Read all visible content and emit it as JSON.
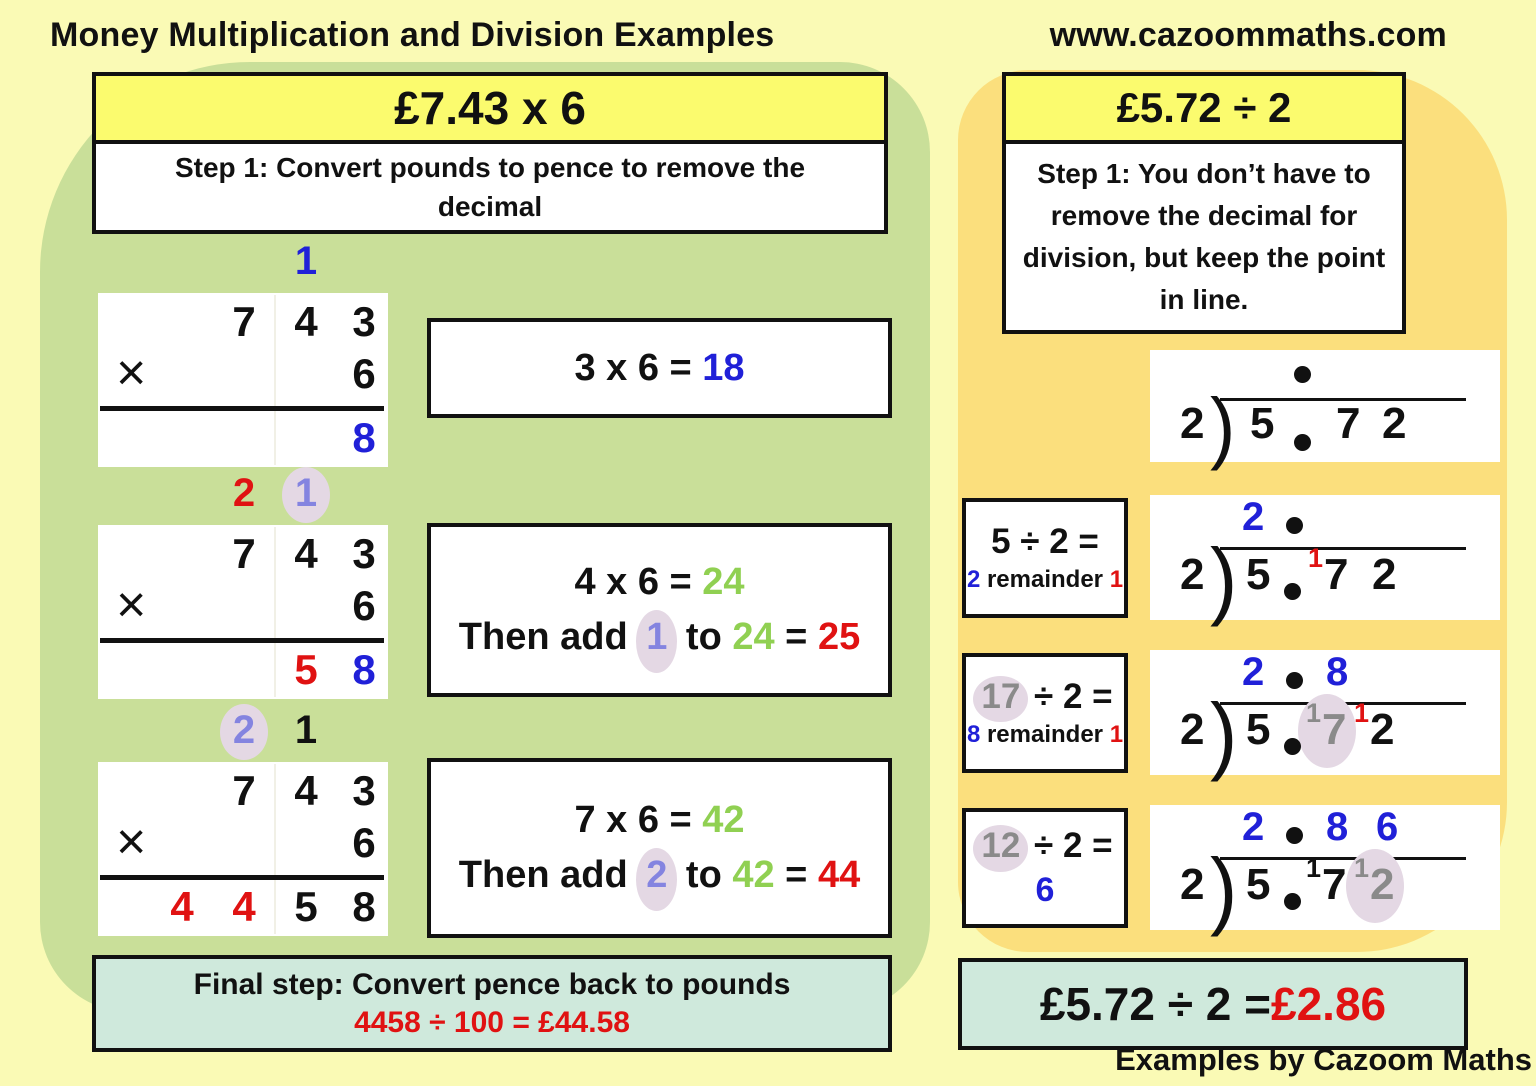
{
  "page": {
    "title": "Money Multiplication and Division Examples",
    "website": "www.cazoommaths.com",
    "credit": "Examples by Cazoom Maths"
  },
  "palette": {
    "pageBg": "#FAFAB5",
    "leftPanel": "#C9DF99",
    "rightPanel": "#FBDF7D",
    "headerYellow": "#FBFB6E",
    "teal": "#CFE9DC",
    "ink": "#111111",
    "blue": "#2020D8",
    "red": "#E01212",
    "green": "#90D052",
    "purple": "#8484E0",
    "grey": "#8A8A8A",
    "highlight": "#E4D8E4"
  },
  "left": {
    "header": "£7.43 x 6",
    "step": "Step 1: Convert pounds to pence to remove the\ndecimal",
    "multiply_sign": "×",
    "mult_blocks": [
      {
        "carries": [
          {
            "t": "1",
            "c": "blue",
            "col": 2
          }
        ],
        "top_digits": [
          "",
          "7",
          "4",
          "3"
        ],
        "multiplier": "6",
        "result": [
          {
            "t": "8",
            "c": "blue",
            "col": 3
          }
        ]
      },
      {
        "carries": [
          {
            "t": "2",
            "c": "red",
            "col": 1
          },
          {
            "t": "1",
            "c": "purple",
            "col": 2,
            "hl": true
          }
        ],
        "top_digits": [
          "",
          "7",
          "4",
          "3"
        ],
        "multiplier": "6",
        "result": [
          {
            "t": "5",
            "c": "red",
            "col": 2
          },
          {
            "t": "8",
            "c": "blue",
            "col": 3
          }
        ]
      },
      {
        "carries": [
          {
            "t": "2",
            "c": "purple",
            "col": 1,
            "hl": true
          },
          {
            "t": "1",
            "c": "black",
            "col": 2
          }
        ],
        "top_digits": [
          "",
          "7",
          "4",
          "3"
        ],
        "multiplier": "6",
        "result": [
          {
            "t": "4",
            "c": "red",
            "col": 0
          },
          {
            "t": "4",
            "c": "red",
            "col": 1
          },
          {
            "t": "5",
            "c": "black",
            "col": 2
          },
          {
            "t": "8",
            "c": "black",
            "col": 3
          }
        ]
      }
    ],
    "equations": [
      {
        "lines": [
          [
            {
              "t": "3 x 6 = "
            },
            {
              "t": "18",
              "c": "blue"
            }
          ]
        ]
      },
      {
        "lines": [
          [
            {
              "t": "4 x 6 = "
            },
            {
              "t": "24",
              "c": "green"
            }
          ],
          [
            {
              "t": "Then add "
            },
            {
              "t": "1",
              "c": "purple",
              "hl": true
            },
            {
              "t": " to "
            },
            {
              "t": "24",
              "c": "green"
            },
            {
              "t": "  = "
            },
            {
              "t": "25",
              "c": "red"
            }
          ]
        ]
      },
      {
        "lines": [
          [
            {
              "t": "7 x 6 = "
            },
            {
              "t": "42",
              "c": "green"
            }
          ],
          [
            {
              "t": "Then add "
            },
            {
              "t": "2",
              "c": "purple",
              "hl": true
            },
            {
              "t": " to "
            },
            {
              "t": "42",
              "c": "green"
            },
            {
              "t": "  = "
            },
            {
              "t": "44",
              "c": "red"
            }
          ]
        ]
      }
    ],
    "final_step": {
      "line1": "Final step: Convert pence back to pounds",
      "line2": "4458  ÷   100 = £44.58"
    }
  },
  "right": {
    "header": "£5.72 ÷ 2",
    "step": "Step 1: You don’t have to\nremove the decimal for\ndivision, but keep the point\nin line.",
    "rows": [
      {
        "label": null,
        "quotient": [
          {
            "t": "•"
          }
        ],
        "dividend": [
          {
            "t": "2"
          },
          {
            "t": ")"
          },
          {
            "t": "5"
          },
          {
            "t": "•"
          },
          {
            "t": "7"
          },
          {
            "t": "2"
          }
        ]
      },
      {
        "label": {
          "line1": [
            {
              "t": "5 ÷ 2 ="
            }
          ],
          "line2": [
            {
              "t": "2",
              "c": "blue"
            },
            {
              "t": " remainder "
            },
            {
              "t": "1",
              "c": "red"
            }
          ],
          "big2": false
        },
        "quotient": [
          {
            "t": "2",
            "c": "blue"
          },
          {
            "t": "•"
          }
        ],
        "dividend": [
          {
            "t": "2"
          },
          {
            "t": ")"
          },
          {
            "t": "5"
          },
          {
            "t": "•"
          },
          {
            "t": "1",
            "sup": true,
            "c": "red"
          },
          {
            "t": "7"
          },
          {
            "t": "2"
          }
        ]
      },
      {
        "label": {
          "line1": [
            {
              "t": "17",
              "c": "grey",
              "hl": true
            },
            {
              "t": " ÷ 2 ="
            }
          ],
          "line2": [
            {
              "t": "8",
              "c": "blue"
            },
            {
              "t": " remainder "
            },
            {
              "t": "1",
              "c": "red"
            }
          ],
          "big2": false
        },
        "quotient": [
          {
            "t": "2",
            "c": "blue"
          },
          {
            "t": "•"
          },
          {
            "t": "8",
            "c": "blue"
          }
        ],
        "dividend": [
          {
            "t": "2"
          },
          {
            "t": ")"
          },
          {
            "t": "5"
          },
          {
            "t": "•"
          },
          {
            "t": "1",
            "sup": true,
            "c": "grey",
            "hl": true
          },
          {
            "t": "7",
            "c": "grey"
          },
          {
            "t": "1",
            "sup": true,
            "c": "red"
          },
          {
            "t": "2"
          }
        ]
      },
      {
        "label": {
          "line1": [
            {
              "t": "12",
              "c": "grey",
              "hl": true
            },
            {
              "t": " ÷ 2 ="
            }
          ],
          "line2": [
            {
              "t": "6",
              "c": "blue"
            }
          ],
          "big2": true
        },
        "quotient": [
          {
            "t": "2",
            "c": "blue"
          },
          {
            "t": "•"
          },
          {
            "t": "8",
            "c": "blue"
          },
          {
            "t": "6",
            "c": "blue"
          }
        ],
        "dividend": [
          {
            "t": "2"
          },
          {
            "t": ")"
          },
          {
            "t": "5"
          },
          {
            "t": "•"
          },
          {
            "t": "1",
            "sup": true
          },
          {
            "t": "7"
          },
          {
            "t": "1",
            "sup": true,
            "c": "grey",
            "hl": true
          },
          {
            "t": "2",
            "c": "grey"
          }
        ]
      }
    ],
    "answer": [
      {
        "t": "£5.72 ÷ 2 = "
      },
      {
        "t": "£2.86",
        "c": "red"
      }
    ]
  }
}
